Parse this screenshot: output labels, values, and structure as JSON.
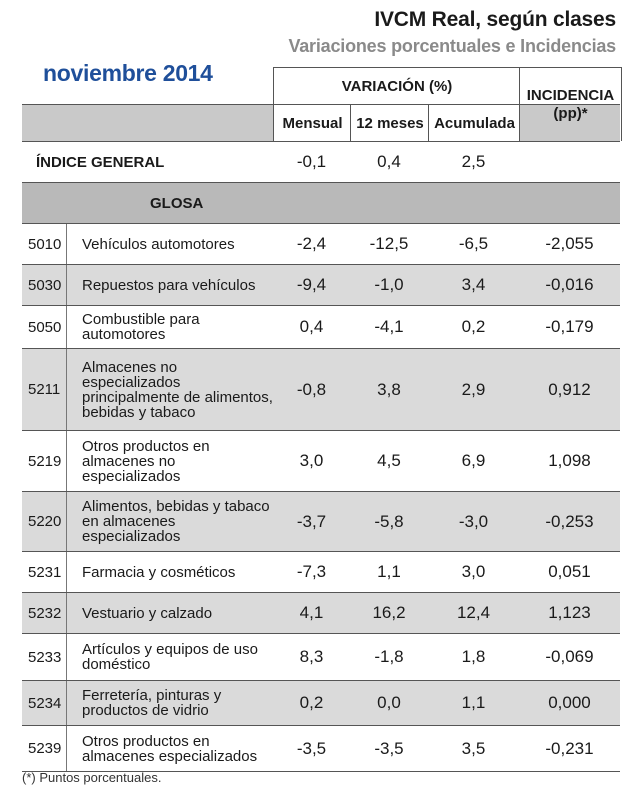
{
  "header": {
    "title": "IVCM Real, según clases",
    "subtitle": "Variaciones porcentuales e Incidencias",
    "period": "noviembre 2014"
  },
  "table": {
    "variacion_label": "VARIACIÓN (%)",
    "incidencia_label_1": "INCIDENCIA",
    "incidencia_label_2": "(pp)*",
    "col_mensual": "Mensual",
    "col_12meses": "12 meses",
    "col_acumulada": "Acumulada",
    "general": {
      "label": "ÍNDICE GENERAL",
      "mensual": "-0,1",
      "doce": "0,4",
      "acumulada": "2,5",
      "incidencia": ""
    },
    "glosa_label": "GLOSA",
    "rows": [
      {
        "code": "5010",
        "name": "Vehículos automotores",
        "mensual": "-2,4",
        "doce": "-12,5",
        "acumulada": "-6,5",
        "incidencia": "-2,055"
      },
      {
        "code": "5030",
        "name": "Repuestos para vehículos",
        "mensual": "-9,4",
        "doce": "-1,0",
        "acumulada": "3,4",
        "incidencia": "-0,016"
      },
      {
        "code": "5050",
        "name": "Combustible para automotores",
        "mensual": "0,4",
        "doce": "-4,1",
        "acumulada": "0,2",
        "incidencia": "-0,179"
      },
      {
        "code": "5211",
        "name": "Almacenes no especializados principalmente de alimentos, bebidas y tabaco",
        "mensual": "-0,8",
        "doce": "3,8",
        "acumulada": "2,9",
        "incidencia": "0,912"
      },
      {
        "code": "5219",
        "name": "Otros productos en almacenes no especializados",
        "mensual": "3,0",
        "doce": "4,5",
        "acumulada": "6,9",
        "incidencia": "1,098"
      },
      {
        "code": "5220",
        "name": "Alimentos, bebidas y tabaco en almacenes especializados",
        "mensual": "-3,7",
        "doce": "-5,8",
        "acumulada": "-3,0",
        "incidencia": "-0,253"
      },
      {
        "code": "5231",
        "name": "Farmacia y cosméticos",
        "mensual": "-7,3",
        "doce": "1,1",
        "acumulada": "3,0",
        "incidencia": "0,051"
      },
      {
        "code": "5232",
        "name": "Vestuario y calzado",
        "mensual": "4,1",
        "doce": "16,2",
        "acumulada": "12,4",
        "incidencia": "1,123"
      },
      {
        "code": "5233",
        "name": "Artículos y equipos de uso doméstico",
        "mensual": "8,3",
        "doce": "-1,8",
        "acumulada": "1,8",
        "incidencia": "-0,069"
      },
      {
        "code": "5234",
        "name": "Ferretería, pinturas y productos de vidrio",
        "mensual": "0,2",
        "doce": "0,0",
        "acumulada": "1,1",
        "incidencia": "0,000"
      },
      {
        "code": "5239",
        "name": "Otros productos en almacenes especializados",
        "mensual": "-3,5",
        "doce": "-3,5",
        "acumulada": "3,5",
        "incidencia": "-0,231"
      }
    ]
  },
  "footnote": "(*) Puntos porcentuales."
}
